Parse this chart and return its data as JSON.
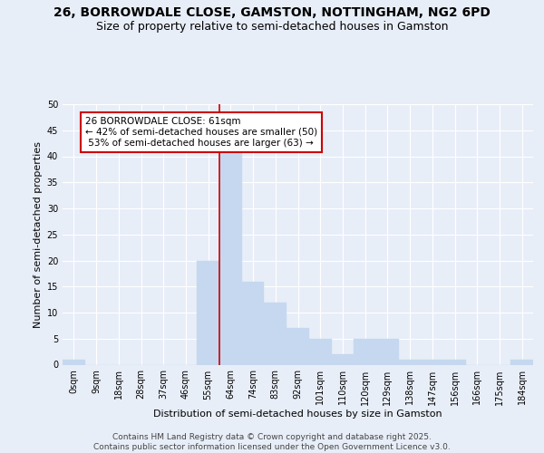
{
  "title": "26, BORROWDALE CLOSE, GAMSTON, NOTTINGHAM, NG2 6PD",
  "subtitle": "Size of property relative to semi-detached houses in Gamston",
  "xlabel": "Distribution of semi-detached houses by size in Gamston",
  "ylabel": "Number of semi-detached properties",
  "bin_labels": [
    "0sqm",
    "9sqm",
    "18sqm",
    "28sqm",
    "37sqm",
    "46sqm",
    "55sqm",
    "64sqm",
    "74sqm",
    "83sqm",
    "92sqm",
    "101sqm",
    "110sqm",
    "120sqm",
    "129sqm",
    "138sqm",
    "147sqm",
    "156sqm",
    "166sqm",
    "175sqm",
    "184sqm"
  ],
  "bar_values": [
    1,
    0,
    0,
    0,
    0,
    0,
    20,
    42,
    16,
    12,
    7,
    5,
    2,
    5,
    5,
    1,
    1,
    1,
    0,
    0,
    1
  ],
  "bar_color": "#c5d8ef",
  "bar_edge_color": "#c5d8ef",
  "vline_x": 6.5,
  "vline_color": "#cc0000",
  "annotation_text": "26 BORROWDALE CLOSE: 61sqm\n← 42% of semi-detached houses are smaller (50)\n 53% of semi-detached houses are larger (63) →",
  "annotation_box_edge_color": "#cc0000",
  "annotation_box_face_color": "#ffffff",
  "footer_text": "Contains HM Land Registry data © Crown copyright and database right 2025.\nContains public sector information licensed under the Open Government Licence v3.0.",
  "ylim": [
    0,
    50
  ],
  "yticks": [
    0,
    5,
    10,
    15,
    20,
    25,
    30,
    35,
    40,
    45,
    50
  ],
  "title_fontsize": 10,
  "subtitle_fontsize": 9,
  "axis_label_fontsize": 8,
  "tick_fontsize": 7,
  "annotation_fontsize": 7.5,
  "footer_fontsize": 6.5,
  "background_color": "#e8eef8",
  "plot_background_color": "#e8eef8",
  "grid_color": "#ffffff"
}
